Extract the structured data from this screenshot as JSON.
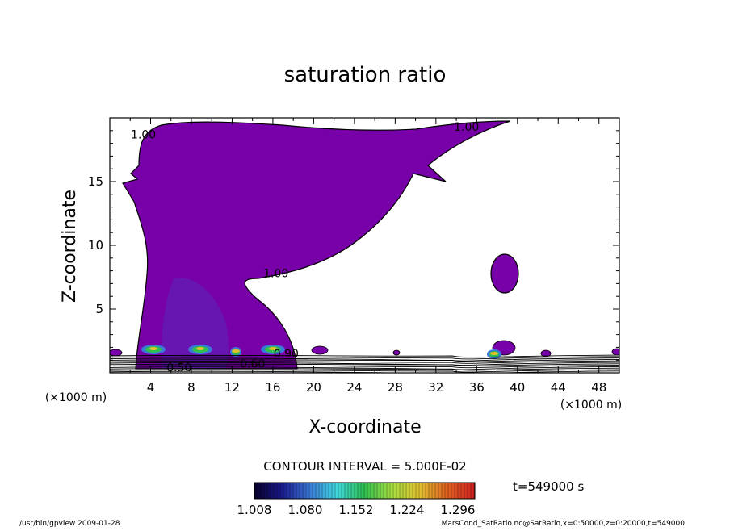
{
  "chart_data": {
    "type": "heatmap",
    "title": "saturation ratio",
    "xlabel": "X-coordinate",
    "ylabel": "Z-coordinate",
    "x_unit_label": "(×1000 m)",
    "y_unit_label": "(×1000 m)",
    "xlim": [
      0,
      50
    ],
    "ylim": [
      0,
      20
    ],
    "x_ticks": [
      {
        "value": 4,
        "label": "4"
      },
      {
        "value": 8,
        "label": "8"
      },
      {
        "value": 12,
        "label": "12"
      },
      {
        "value": 16,
        "label": "16"
      },
      {
        "value": 20,
        "label": "20"
      },
      {
        "value": 24,
        "label": "24"
      },
      {
        "value": 28,
        "label": "28"
      },
      {
        "value": 32,
        "label": "32"
      },
      {
        "value": 36,
        "label": "36"
      },
      {
        "value": 40,
        "label": "40"
      },
      {
        "value": 44,
        "label": "44"
      },
      {
        "value": 48,
        "label": "48"
      }
    ],
    "y_ticks": [
      {
        "value": 5,
        "label": "5"
      },
      {
        "value": 10,
        "label": "10"
      },
      {
        "value": 15,
        "label": "15"
      }
    ],
    "contour_interval_text": "CONTOUR INTERVAL = 5.000E-02",
    "time_text": "t=549000 s",
    "colorbar": {
      "tick_labels": [
        "1.008",
        "1.080",
        "1.152",
        "1.224",
        "1.296"
      ],
      "range": [
        1.008,
        1.32
      ],
      "colors": [
        "#08002a",
        "#1a1a8c",
        "#3a78d8",
        "#40d8e0",
        "#30c050",
        "#a8e040",
        "#e0c030",
        "#e06020",
        "#d02020"
      ]
    },
    "contour_labels": [
      {
        "x": 3.3,
        "y": 18.4,
        "text": "1.00"
      },
      {
        "x": 35.0,
        "y": 19.0,
        "text": "1.00"
      },
      {
        "x": 16.3,
        "y": 7.5,
        "text": "1.00"
      },
      {
        "x": 17.3,
        "y": 1.2,
        "text": "0.90"
      },
      {
        "x": 6.8,
        "y": 0.1,
        "text": "0.50"
      },
      {
        "x": 14.0,
        "y": 0.4,
        "text": "0.60"
      }
    ],
    "fill_color": "#7800a8",
    "footer_left": "/usr/bin/gpview   2009-01-28",
    "footer_right": "MarsCond_SatRatio.nc@SatRatio,x=0:50000,z=0:20000,t=549000"
  }
}
